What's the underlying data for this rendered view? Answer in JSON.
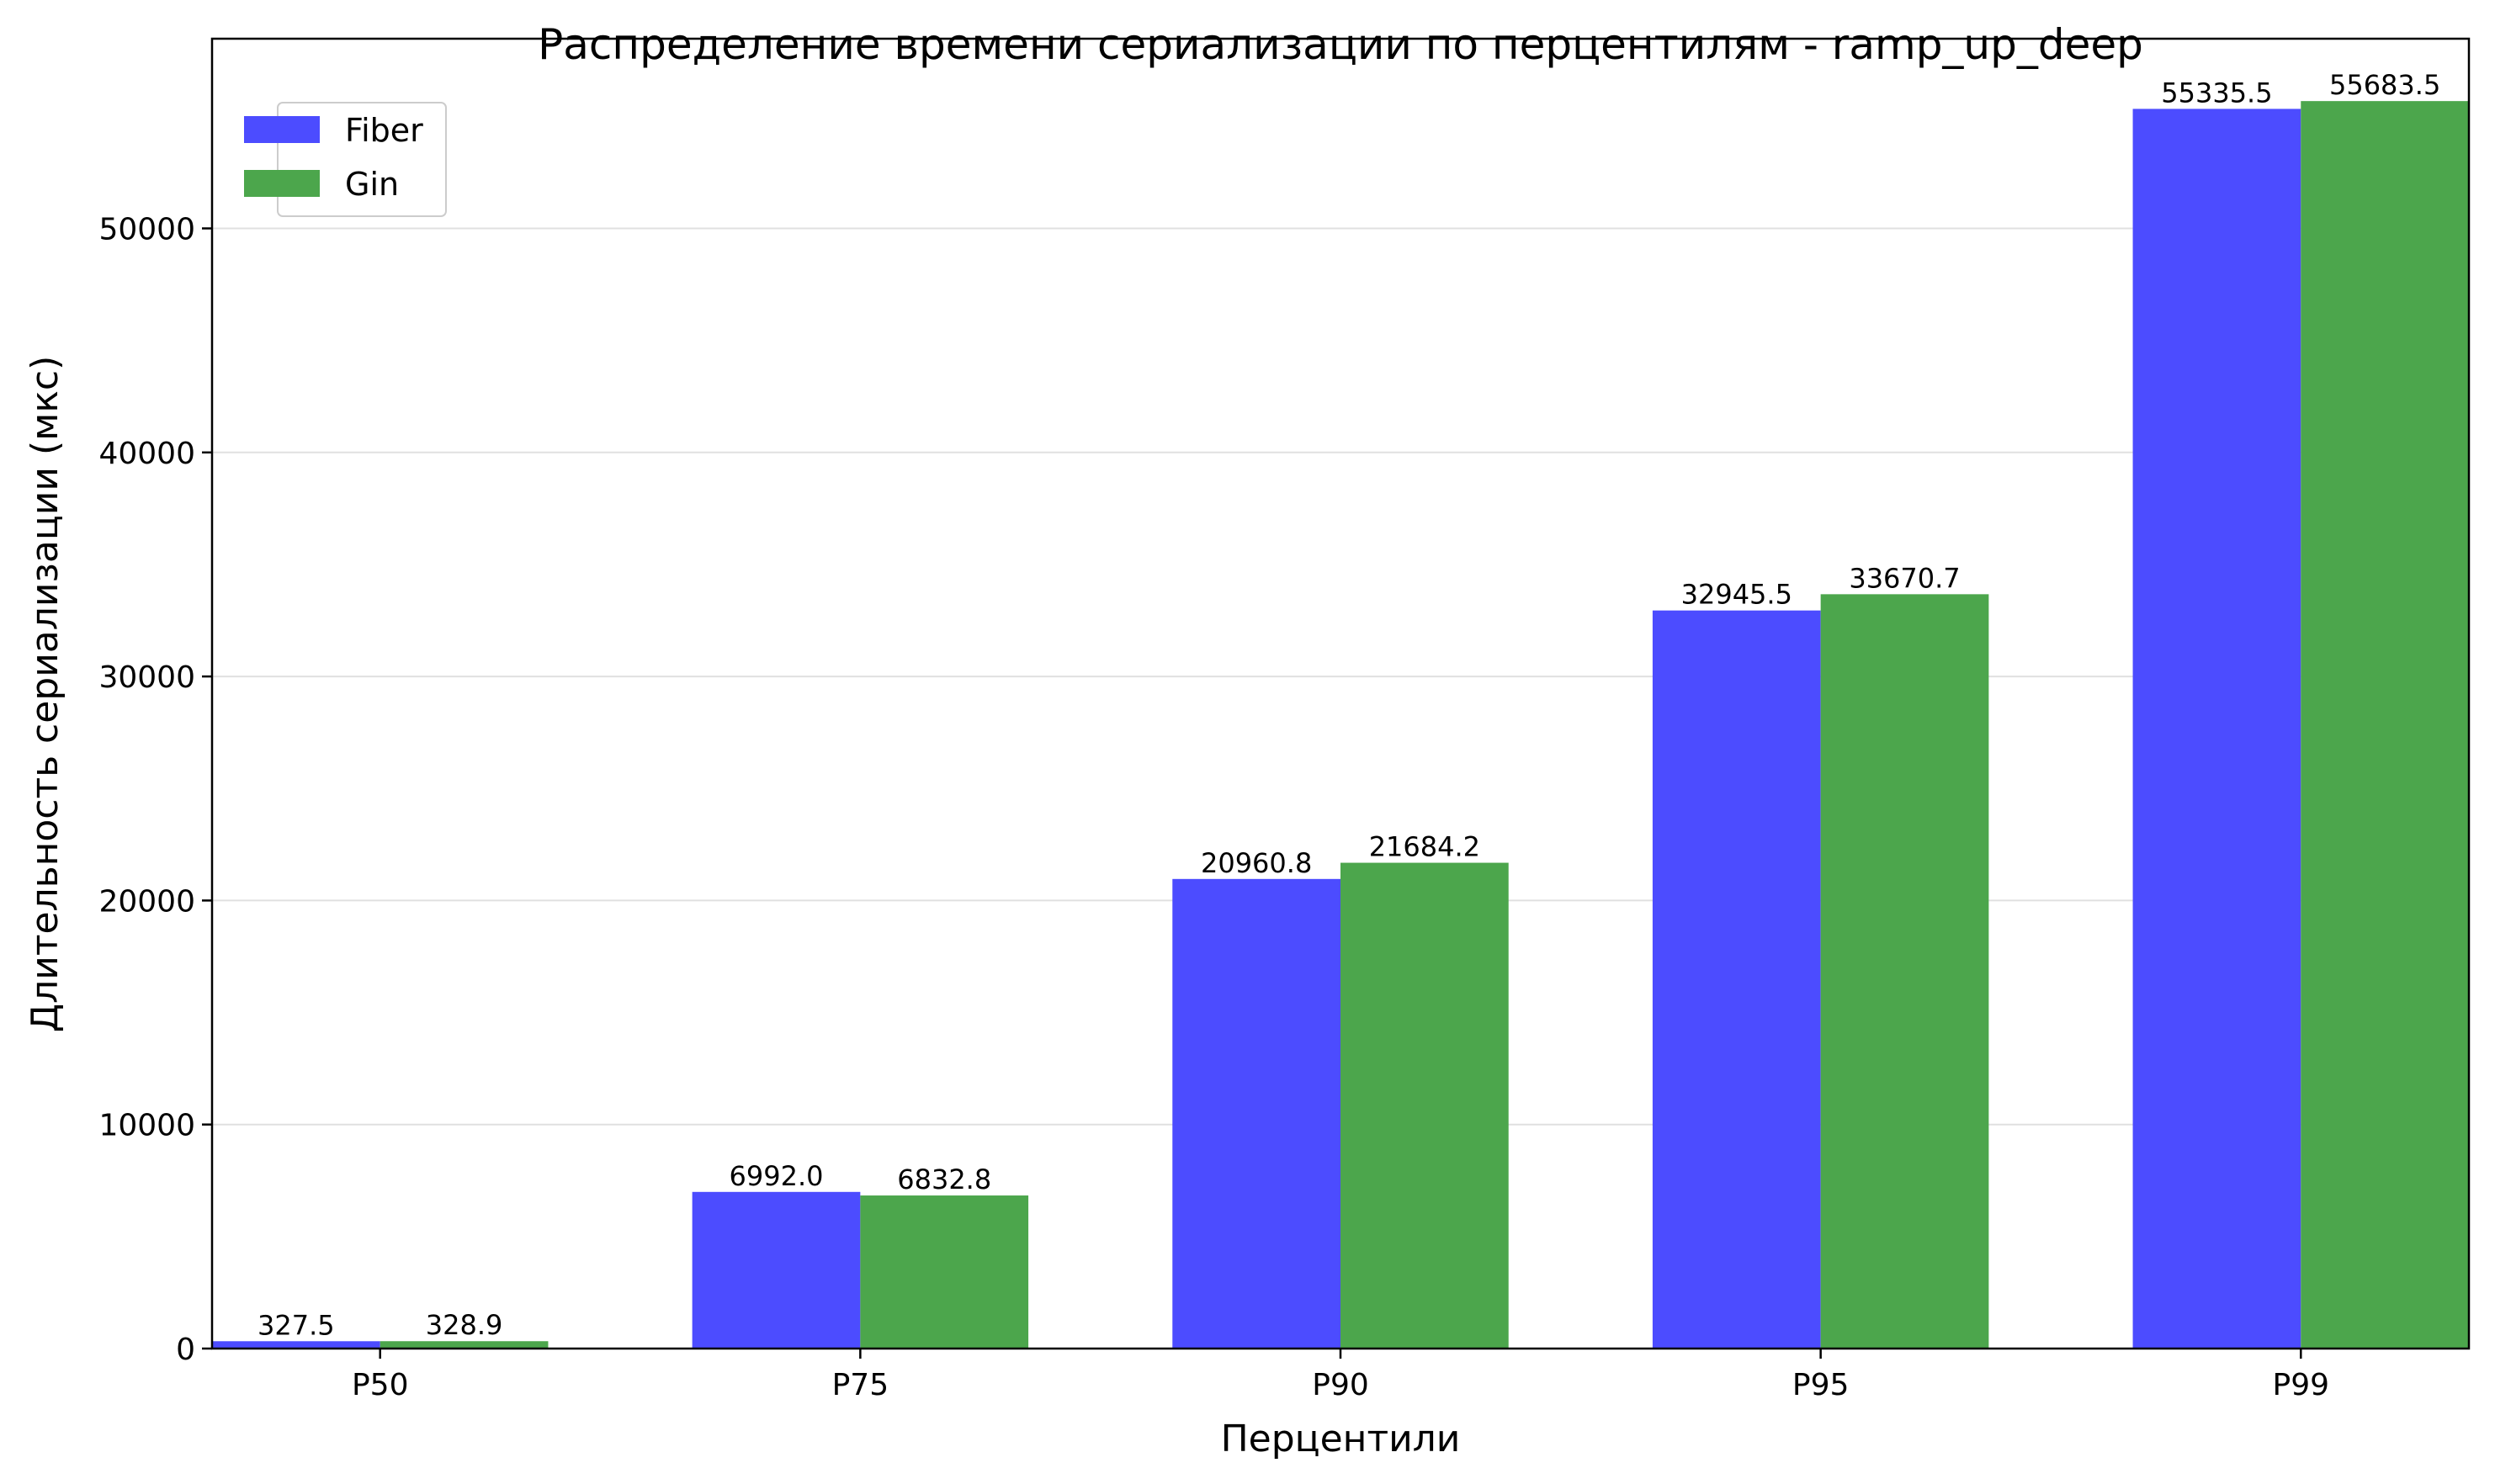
{
  "chart_data": {
    "type": "bar",
    "title": "Распределение времени сериализации по перцентилям - ramp_up_deep",
    "xlabel": "Перцентили",
    "ylabel": "Длительность сериализации (мкс)",
    "categories": [
      "P50",
      "P75",
      "P90",
      "P95",
      "P99"
    ],
    "series": [
      {
        "name": "Fiber",
        "color": "#4c4cff",
        "values": [
          327.5,
          6992.0,
          20960.8,
          32945.5,
          55335.5
        ],
        "labels": [
          "327.5",
          "6992.0",
          "20960.8",
          "32945.5",
          "55335.5"
        ]
      },
      {
        "name": "Gin",
        "color": "#4ca64c",
        "values": [
          328.9,
          6832.8,
          21684.2,
          33670.7,
          55683.5
        ],
        "labels": [
          "328.9",
          "6832.8",
          "21684.2",
          "33670.7",
          "55683.5"
        ]
      }
    ],
    "ylim": [
      0,
      58468
    ],
    "yticks": [
      0,
      10000,
      20000,
      30000,
      40000,
      50000
    ],
    "ytick_labels": [
      "0",
      "10000",
      "20000",
      "30000",
      "40000",
      "50000"
    ],
    "grid": "y",
    "legend_position": "top-left"
  }
}
